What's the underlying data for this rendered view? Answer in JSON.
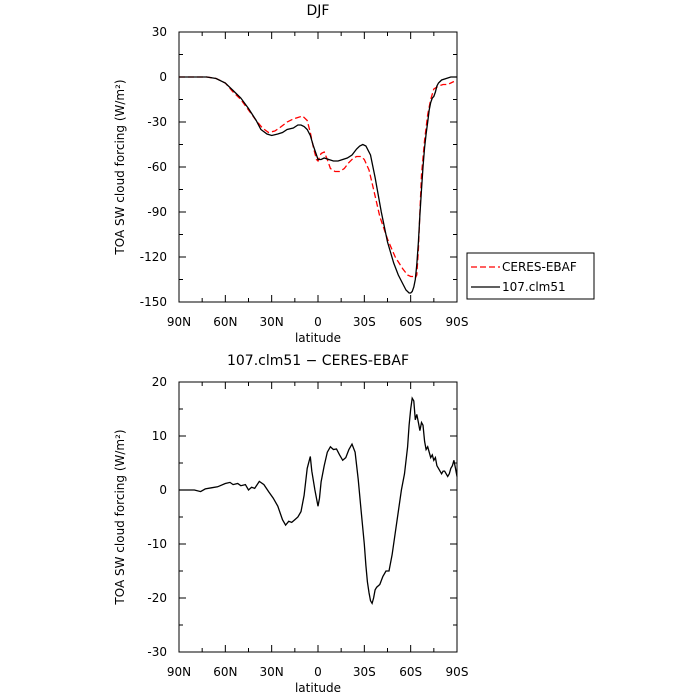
{
  "chart_data": [
    {
      "type": "line",
      "title": "DJF",
      "xlabel": "latitude",
      "ylabel": "TOA SW cloud forcing (W/m²)",
      "xlim": [
        90,
        -90
      ],
      "ylim": [
        -150,
        30
      ],
      "x_ticks": [
        90,
        60,
        30,
        0,
        -30,
        -60,
        -90
      ],
      "x_tick_labels": [
        "90N",
        "60N",
        "30N",
        "0",
        "30S",
        "60S",
        "90S"
      ],
      "y_ticks": [
        30,
        0,
        -30,
        -60,
        -90,
        -120,
        -150
      ],
      "y_tick_labels": [
        "30",
        "0",
        "-30",
        "-60",
        "-90",
        "-120",
        "-150"
      ],
      "legend_position": "right",
      "series": [
        {
          "name": "CERES-EBAF",
          "color": "#ff0000",
          "dash": "dashed",
          "x": [
            90,
            80,
            72,
            66,
            60,
            55,
            50,
            45,
            40,
            36,
            32,
            28,
            25,
            20,
            16,
            13,
            10,
            7,
            5,
            3,
            1,
            0,
            -2,
            -4,
            -6,
            -8,
            -11,
            -14,
            -17,
            -20,
            -23,
            -25,
            -28,
            -30,
            -33,
            -36,
            -40,
            -45,
            -50,
            -55,
            -58,
            -60,
            -62,
            -63,
            -64,
            -65,
            -66,
            -67,
            -69,
            -71,
            -73,
            -75,
            -78,
            -81,
            -84,
            -86,
            -88
          ],
          "y": [
            0,
            0,
            0,
            -1,
            -4,
            -10,
            -15,
            -22,
            -29,
            -34,
            -37,
            -36,
            -34,
            -30,
            -28,
            -27,
            -26,
            -29,
            -37,
            -47,
            -55,
            -56,
            -51,
            -50,
            -55,
            -61,
            -63,
            -63,
            -61,
            -57,
            -54,
            -53,
            -53,
            -55,
            -62,
            -75,
            -93,
            -108,
            -120,
            -128,
            -132,
            -133,
            -133,
            -134,
            -132,
            -115,
            -90,
            -65,
            -42,
            -25,
            -15,
            -8,
            -6,
            -5,
            -5,
            -4,
            -3
          ]
        },
        {
          "name": "107.clm51",
          "color": "#000000",
          "dash": "solid",
          "x": [
            90,
            80,
            72,
            66,
            60,
            55,
            50,
            45,
            40,
            37,
            33,
            30,
            26,
            23,
            20,
            16,
            13,
            11,
            9,
            7,
            5,
            3,
            1,
            0,
            -2,
            -4,
            -7,
            -10,
            -13,
            -16,
            -19,
            -22,
            -25,
            -27,
            -29,
            -31,
            -34,
            -37,
            -41,
            -45,
            -49,
            -52,
            -55,
            -57,
            -59,
            -60,
            -61,
            -62,
            -63,
            -64,
            -65,
            -66,
            -67,
            -68,
            -69,
            -70,
            -71,
            -72,
            -73,
            -74,
            -75,
            -76,
            -77,
            -78,
            -80,
            -83,
            -86,
            -88,
            -90
          ],
          "y": [
            0,
            0,
            0,
            -1,
            -4,
            -9,
            -14,
            -21,
            -29,
            -35,
            -38,
            -39,
            -38,
            -37,
            -35,
            -34,
            -32,
            -32,
            -33,
            -35,
            -39,
            -46,
            -52,
            -55,
            -55,
            -54,
            -55,
            -56,
            -56,
            -55,
            -54,
            -52,
            -48,
            -46,
            -45,
            -46,
            -52,
            -67,
            -90,
            -110,
            -124,
            -132,
            -138,
            -142,
            -144,
            -144,
            -143,
            -140,
            -135,
            -125,
            -110,
            -92,
            -75,
            -60,
            -47,
            -38,
            -30,
            -22,
            -17,
            -14,
            -13,
            -10,
            -6,
            -4,
            -2,
            -1,
            0,
            0,
            0
          ]
        }
      ]
    },
    {
      "type": "line",
      "title": "107.clm51 − CERES-EBAF",
      "xlabel": "latitude",
      "ylabel": "TOA SW cloud forcing (W/m²)",
      "xlim": [
        90,
        -90
      ],
      "ylim": [
        -30,
        20
      ],
      "x_ticks": [
        90,
        60,
        30,
        0,
        -30,
        -60,
        -90
      ],
      "x_tick_labels": [
        "90N",
        "60N",
        "30N",
        "0",
        "30S",
        "60S",
        "90S"
      ],
      "y_ticks": [
        20,
        10,
        0,
        -10,
        -20,
        -30
      ],
      "y_tick_labels": [
        "20",
        "10",
        "0",
        "-10",
        "-20",
        "-30"
      ],
      "series": [
        {
          "color": "#000000",
          "dash": "solid",
          "x": [
            90,
            80,
            76,
            73,
            69,
            65,
            60,
            57,
            55,
            52,
            50,
            47,
            45,
            43,
            41,
            38,
            35,
            32,
            29,
            26,
            23,
            21,
            19,
            17,
            15,
            13,
            11,
            9,
            7,
            5,
            4,
            2,
            0,
            -1,
            -2,
            -4,
            -6,
            -8,
            -10,
            -12,
            -14,
            -16,
            -18,
            -20,
            -22,
            -24,
            -26,
            -28,
            -30,
            -31,
            -32,
            -33,
            -34,
            -35,
            -36,
            -37,
            -38,
            -40,
            -42,
            -44,
            -46,
            -48,
            -50,
            -52,
            -54,
            -56,
            -58,
            -59,
            -60,
            -61,
            -62,
            -63,
            -64,
            -65,
            -66,
            -67,
            -68,
            -69,
            -70,
            -71,
            -72,
            -73,
            -74,
            -75,
            -76,
            -77,
            -78,
            -79,
            -80,
            -81,
            -82,
            -84,
            -85,
            -86,
            -87,
            -88,
            -89,
            -90
          ],
          "y": [
            0,
            0,
            -0.3,
            0.2,
            0.4,
            0.6,
            1.2,
            1.4,
            1.0,
            1.2,
            0.8,
            1.0,
            0.0,
            0.5,
            0.3,
            1.6,
            1.0,
            -0.3,
            -1.5,
            -3.0,
            -5.5,
            -6.5,
            -5.8,
            -6.0,
            -5.5,
            -5.0,
            -4.0,
            -1.0,
            4.0,
            6.2,
            3.5,
            0.0,
            -3.0,
            -1.5,
            1.5,
            4.5,
            7.0,
            8.0,
            7.5,
            7.6,
            6.5,
            5.5,
            6.0,
            7.5,
            8.5,
            7.0,
            2.0,
            -4.0,
            -10.0,
            -14.0,
            -17.0,
            -19.0,
            -20.5,
            -21.0,
            -20.0,
            -18.5,
            -18.0,
            -17.5,
            -16.0,
            -15.0,
            -15.0,
            -12.0,
            -8.0,
            -4.0,
            0.0,
            3.0,
            8.0,
            12.0,
            15.0,
            17.0,
            16.5,
            13.0,
            14.0,
            12.5,
            11.0,
            12.5,
            12.0,
            9.0,
            7.5,
            8.0,
            7.0,
            6.0,
            6.5,
            5.5,
            6.0,
            4.5,
            4.0,
            3.5,
            3.0,
            3.5,
            3.5,
            2.5,
            3.0,
            4.0,
            4.5,
            5.5,
            4.0,
            2.5
          ]
        }
      ]
    }
  ]
}
